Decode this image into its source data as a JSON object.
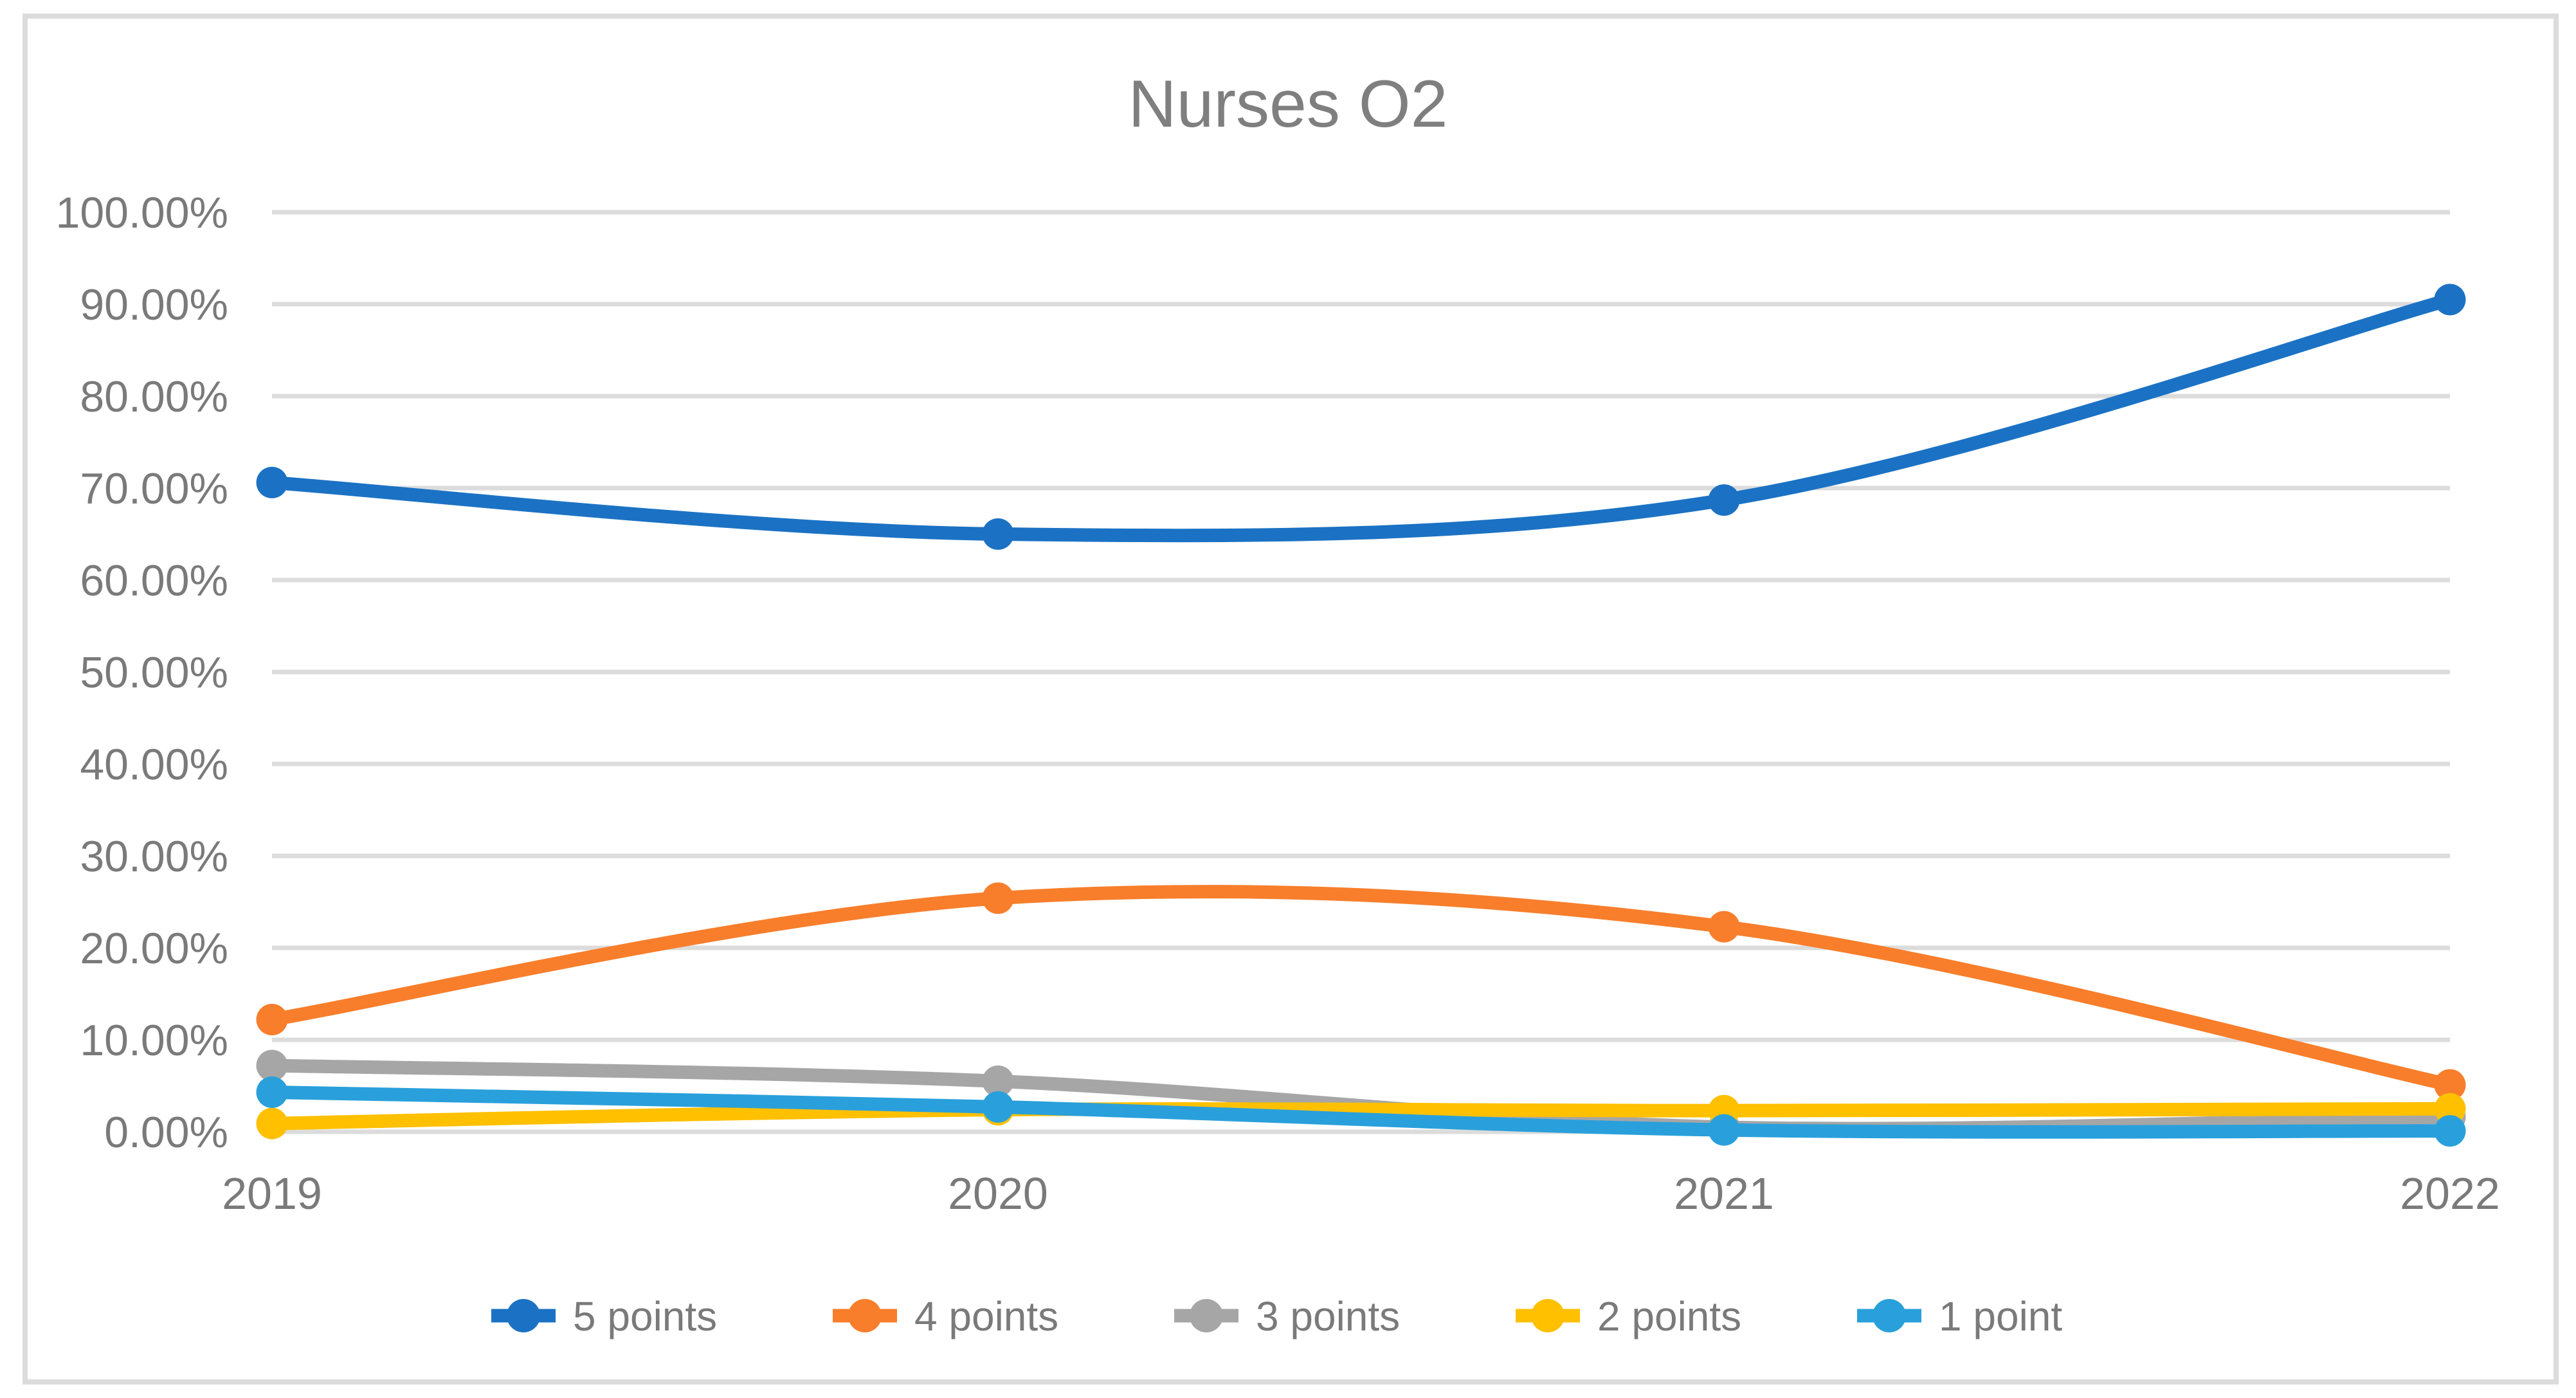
{
  "chart_data": {
    "type": "line",
    "title": "Nurses O2",
    "categories": [
      "2019",
      "2020",
      "2021",
      "2022"
    ],
    "series": [
      {
        "name": "5 points",
        "color": "#1B72C4",
        "values": [
          70.6,
          65.0,
          68.7,
          90.5
        ]
      },
      {
        "name": "4 points",
        "color": "#F87E2B",
        "values": [
          12.2,
          25.4,
          22.3,
          5.1
        ]
      },
      {
        "name": "3 points",
        "color": "#A6A6A6",
        "values": [
          7.2,
          5.5,
          0.5,
          1.6
        ]
      },
      {
        "name": "2 points",
        "color": "#FFC000",
        "values": [
          0.9,
          2.4,
          2.3,
          2.5
        ]
      },
      {
        "name": "1 point",
        "color": "#29A0DB",
        "values": [
          4.3,
          2.7,
          0.2,
          0.1
        ]
      }
    ],
    "ylim": [
      0,
      100
    ],
    "y_tick_step": 10,
    "y_tick_labels": [
      "0.00%",
      "10.00%",
      "20.00%",
      "30.00%",
      "40.00%",
      "50.00%",
      "60.00%",
      "70.00%",
      "80.00%",
      "90.00%",
      "100.00%"
    ],
    "xlabel": "",
    "ylabel": "",
    "grid": "horizontal",
    "legend_position": "bottom",
    "line_smoothing": true,
    "marker": "circle"
  },
  "styles": {
    "background": "#FFFFFF",
    "frame_border_color": "#DCDCDC",
    "grid_color": "#DCDCDC",
    "axis_text_color": "#7A7A7A",
    "title_color": "#7F7F7F",
    "legend_text_color": "#7A7A7A"
  }
}
